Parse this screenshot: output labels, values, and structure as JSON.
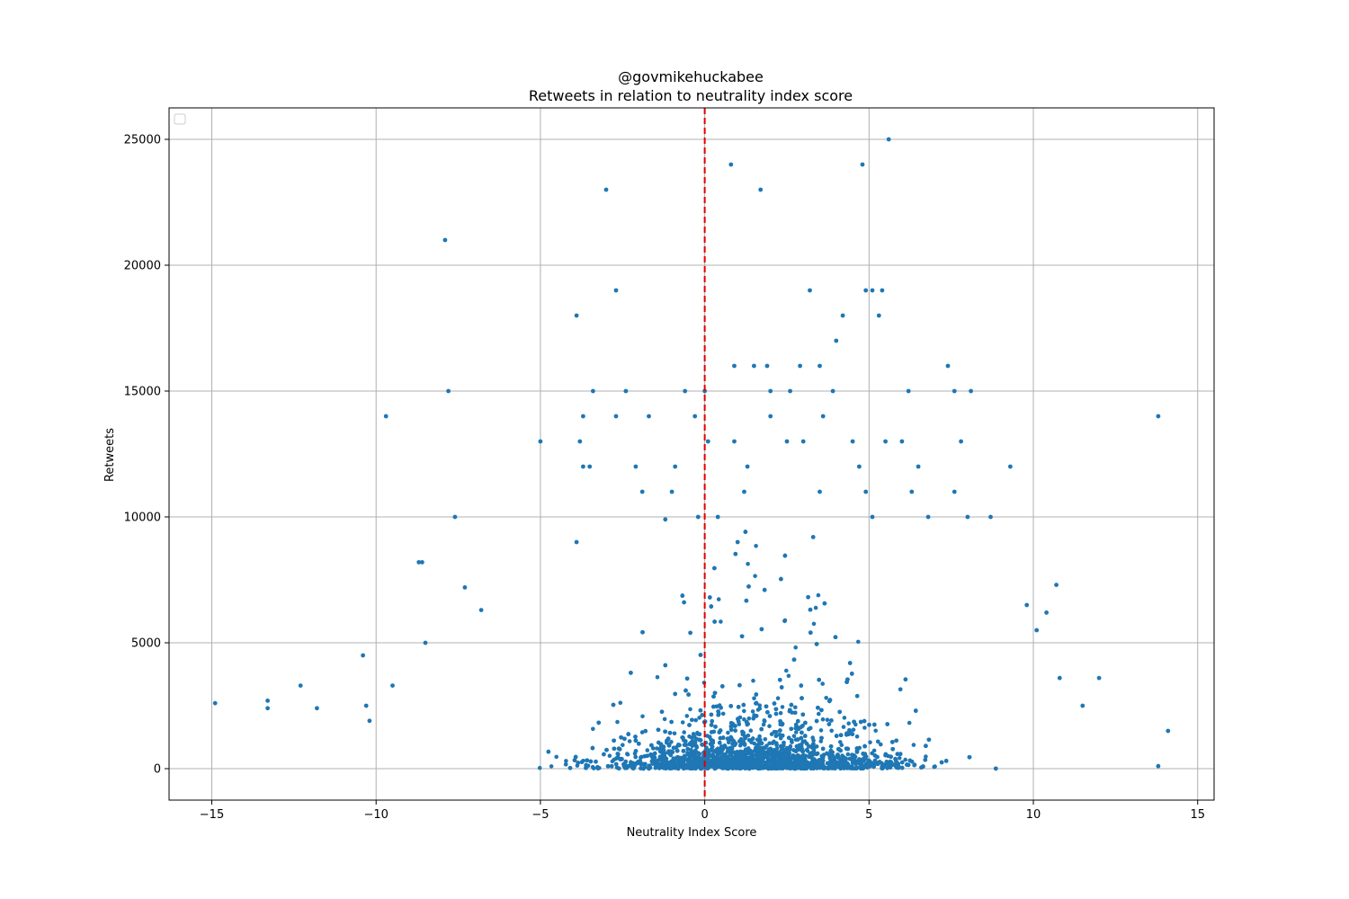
{
  "chart_data": {
    "type": "scatter",
    "title_line1": "@govmikehuckabee",
    "title_line2": "Retweets in relation to neutrality index score",
    "xlabel": "Neutrality Index Score",
    "ylabel": "Retweets",
    "xlim": [
      -16.3,
      15.5
    ],
    "ylim": [
      -1250,
      26250
    ],
    "xticks": [
      -15,
      -10,
      -5,
      0,
      5,
      10,
      15
    ],
    "xtick_labels": [
      "−15",
      "−10",
      "−5",
      "0",
      "5",
      "10",
      "15"
    ],
    "yticks": [
      0,
      5000,
      10000,
      15000,
      20000,
      25000
    ],
    "ytick_labels": [
      "0",
      "5000",
      "10000",
      "15000",
      "20000",
      "25000"
    ],
    "grid": true,
    "legend": "top-left (empty)",
    "reference_line": {
      "x": 0,
      "style": "dashed",
      "color": "#e00000"
    },
    "marker_color": "#1f77b4",
    "series": [
      {
        "x": [
          5.6,
          0.8,
          4.8,
          -3.0,
          1.7,
          -7.9,
          -2.7,
          3.2,
          4.9,
          5.1,
          5.4,
          -3.9,
          4.2,
          5.3,
          4.0,
          0.9,
          1.5,
          1.9,
          2.9,
          3.5,
          7.4,
          -7.8,
          -3.4,
          -2.4,
          -0.6,
          0.0,
          2.0,
          2.6,
          3.9,
          6.2,
          7.6,
          8.1,
          -9.7,
          13.8,
          -3.7,
          -2.7,
          -1.7,
          -0.3,
          2.0,
          3.6,
          3.0,
          -5.0,
          -3.8,
          0.1,
          0.9,
          2.5,
          4.5,
          5.5,
          6.0,
          7.8,
          -3.7,
          -3.5,
          -2.1,
          -0.9,
          1.3,
          4.7,
          6.5,
          9.3,
          -1.9,
          -1.0,
          1.2,
          3.5,
          4.9,
          6.3,
          7.6,
          -7.6,
          -0.2,
          0.4,
          5.1,
          6.8,
          8.0,
          8.7,
          -8.7,
          -8.6,
          -8.5,
          13.8,
          14.1,
          -14.9,
          -13.3,
          -12.3,
          12.0,
          11.5,
          10.8,
          10.7,
          -11.8,
          -13.3,
          -10.4,
          -9.5,
          -10.3,
          -10.2,
          -7.3,
          -6.8,
          -3.9,
          -1.2,
          1.0,
          3.3,
          9.8,
          10.1,
          10.4
        ],
        "y": [
          25000,
          24000,
          24000,
          23000,
          23000,
          21000,
          19000,
          19000,
          19000,
          19000,
          19000,
          18000,
          18000,
          18000,
          17000,
          16000,
          16000,
          16000,
          16000,
          16000,
          16000,
          15000,
          15000,
          15000,
          15000,
          15000,
          15000,
          15000,
          15000,
          15000,
          15000,
          15000,
          14000,
          14000,
          14000,
          14000,
          14000,
          14000,
          14000,
          14000,
          13000,
          13000,
          13000,
          13000,
          13000,
          13000,
          13000,
          13000,
          13000,
          13000,
          12000,
          12000,
          12000,
          12000,
          12000,
          12000,
          12000,
          12000,
          11000,
          11000,
          11000,
          11000,
          11000,
          11000,
          11000,
          10000,
          10000,
          10000,
          10000,
          10000,
          10000,
          10000,
          8200,
          8200,
          5000,
          100,
          1500,
          2600,
          2700,
          3300,
          3600,
          2500,
          3600,
          7300,
          2400,
          2400,
          4500,
          3300,
          2500,
          1900,
          7200,
          6300,
          9000,
          9900,
          9000,
          9200,
          6500,
          5500,
          6200
        ]
      }
    ]
  }
}
